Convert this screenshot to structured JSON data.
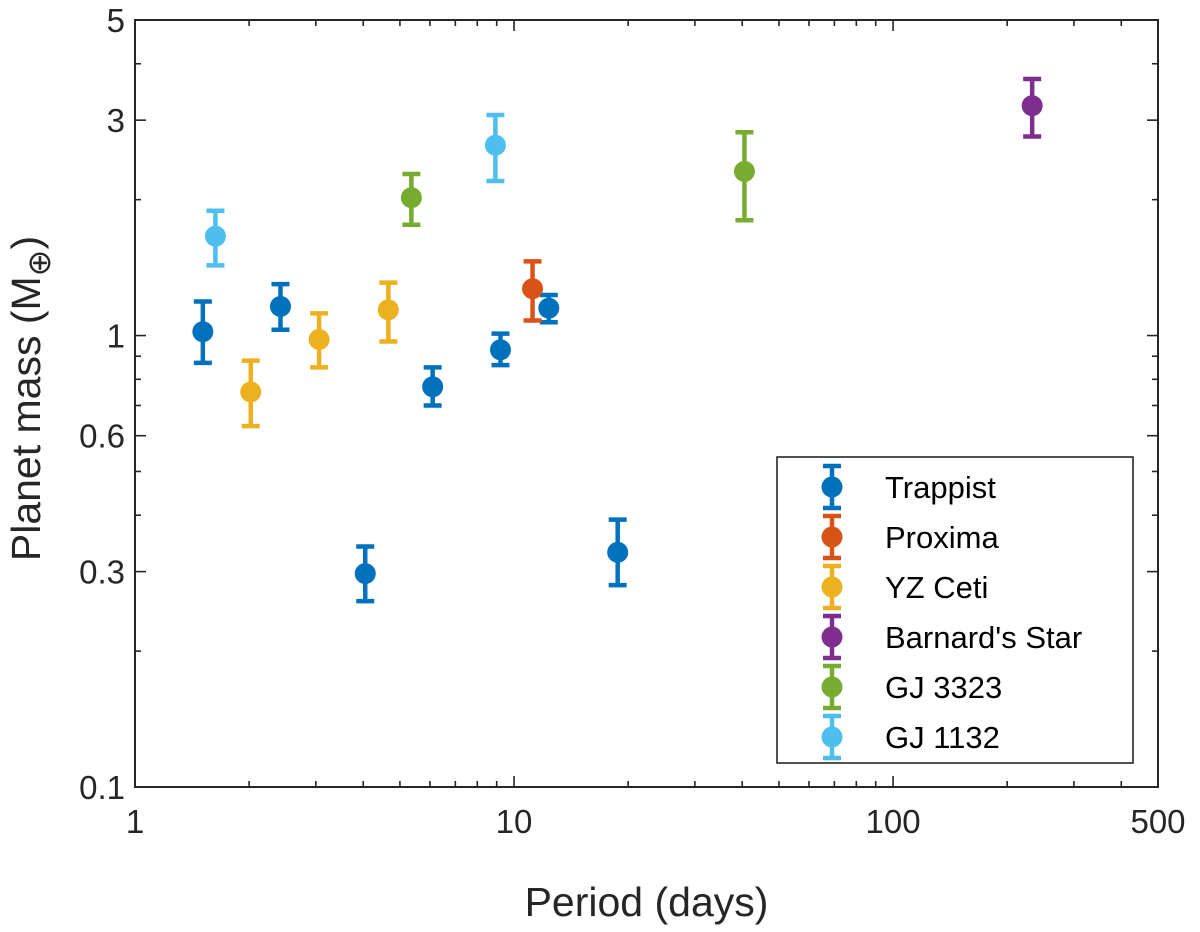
{
  "chart_data": {
    "type": "scatter",
    "title": "",
    "xlabel": "Period (days)",
    "ylabel_main": "Planet mass (M",
    "ylabel_sub": "⊕",
    "ylabel_close": ")",
    "xscale": "log",
    "yscale": "log",
    "xlim": [
      1,
      500
    ],
    "ylim": [
      0.1,
      5
    ],
    "xticks": [
      {
        "value": 1,
        "label": "1"
      },
      {
        "value": 10,
        "label": "10"
      },
      {
        "value": 100,
        "label": "100"
      },
      {
        "value": 500,
        "label": "500"
      }
    ],
    "yticks": [
      {
        "value": 0.1,
        "label": "0.1"
      },
      {
        "value": 0.3,
        "label": "0.3"
      },
      {
        "value": 0.6,
        "label": "0.6"
      },
      {
        "value": 1,
        "label": "1"
      },
      {
        "value": 3,
        "label": "3"
      },
      {
        "value": 5,
        "label": "5"
      }
    ],
    "legend_position": "bottom-right",
    "series": [
      {
        "name": "Trappist",
        "color": "#0072BD",
        "points": [
          {
            "x": 1.51,
            "y": 1.02,
            "lo": 0.87,
            "hi": 1.19
          },
          {
            "x": 2.42,
            "y": 1.16,
            "lo": 1.03,
            "hi": 1.3
          },
          {
            "x": 4.05,
            "y": 0.297,
            "lo": 0.258,
            "hi": 0.341
          },
          {
            "x": 6.1,
            "y": 0.77,
            "lo": 0.7,
            "hi": 0.85
          },
          {
            "x": 9.21,
            "y": 0.93,
            "lo": 0.86,
            "hi": 1.01
          },
          {
            "x": 12.35,
            "y": 1.15,
            "lo": 1.07,
            "hi": 1.23
          },
          {
            "x": 18.77,
            "y": 0.331,
            "lo": 0.28,
            "hi": 0.391
          }
        ]
      },
      {
        "name": "Proxima",
        "color": "#D95319",
        "points": [
          {
            "x": 11.19,
            "y": 1.27,
            "lo": 1.08,
            "hi": 1.46
          }
        ]
      },
      {
        "name": "YZ Ceti",
        "color": "#EDB120",
        "points": [
          {
            "x": 2.02,
            "y": 0.75,
            "lo": 0.63,
            "hi": 0.88
          },
          {
            "x": 3.06,
            "y": 0.98,
            "lo": 0.85,
            "hi": 1.12
          },
          {
            "x": 4.66,
            "y": 1.14,
            "lo": 0.97,
            "hi": 1.31
          }
        ]
      },
      {
        "name": "Barnard's Star",
        "color": "#7E2F8E",
        "points": [
          {
            "x": 232.8,
            "y": 3.23,
            "lo": 2.76,
            "hi": 3.7
          }
        ]
      },
      {
        "name": "GJ 3323",
        "color": "#77AC30",
        "points": [
          {
            "x": 5.36,
            "y": 2.02,
            "lo": 1.76,
            "hi": 2.28
          },
          {
            "x": 40.54,
            "y": 2.31,
            "lo": 1.8,
            "hi": 2.82
          }
        ]
      },
      {
        "name": "GJ 1132",
        "color": "#4DBEEE",
        "points": [
          {
            "x": 1.63,
            "y": 1.66,
            "lo": 1.43,
            "hi": 1.89
          },
          {
            "x": 8.93,
            "y": 2.64,
            "lo": 2.2,
            "hi": 3.08
          }
        ]
      }
    ]
  }
}
